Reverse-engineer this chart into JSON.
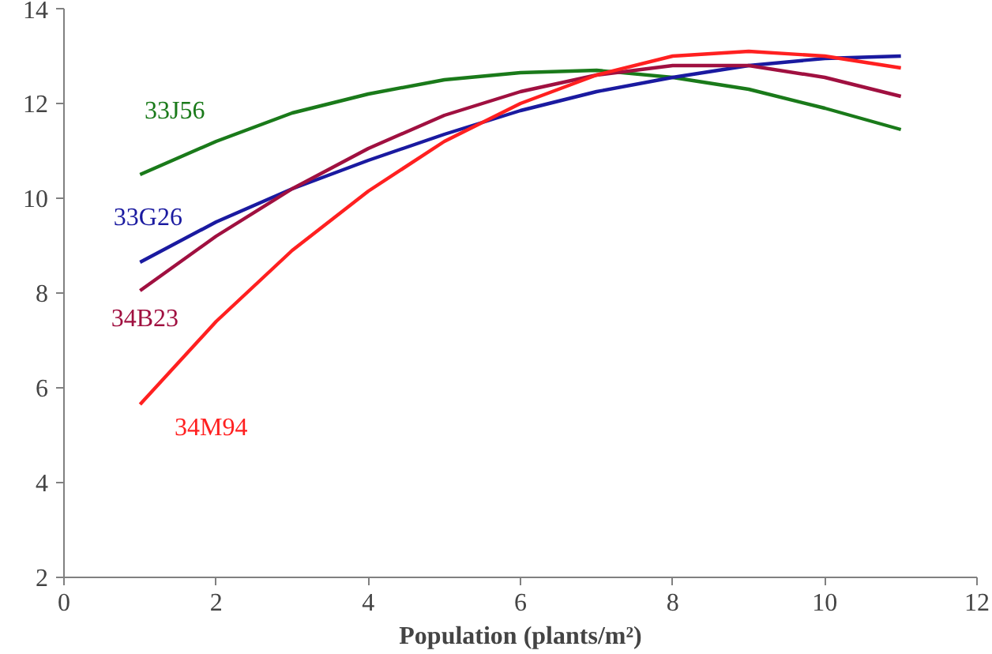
{
  "chart_data": {
    "type": "line",
    "xlabel": "Population (plants/m²)",
    "x": [
      1,
      2,
      3,
      4,
      5,
      6,
      7,
      8,
      9,
      10,
      11
    ],
    "xlim": [
      0,
      12
    ],
    "xticks": [
      0,
      2,
      4,
      6,
      8,
      10,
      12
    ],
    "ylim": [
      2,
      14
    ],
    "yticks": [
      2,
      4,
      6,
      8,
      10,
      12,
      14
    ],
    "grid": false,
    "marker": "none",
    "line_style": "solid",
    "series": [
      {
        "name": "33J56",
        "color": "#1a7a1a",
        "values": [
          10.5,
          11.2,
          11.8,
          12.2,
          12.5,
          12.65,
          12.7,
          12.55,
          12.3,
          11.9,
          11.45
        ]
      },
      {
        "name": "33G26",
        "color": "#1a1aa0",
        "values": [
          8.65,
          9.5,
          10.2,
          10.8,
          11.35,
          11.85,
          12.25,
          12.55,
          12.8,
          12.95,
          13.0
        ]
      },
      {
        "name": "34B23",
        "color": "#a01040",
        "values": [
          8.05,
          9.2,
          10.2,
          11.05,
          11.75,
          12.25,
          12.6,
          12.8,
          12.8,
          12.55,
          12.15
        ]
      },
      {
        "name": "34M94",
        "color": "#ff2020",
        "values": [
          5.65,
          7.4,
          8.9,
          10.15,
          11.2,
          12.0,
          12.6,
          13.0,
          13.1,
          13.0,
          12.75
        ]
      }
    ]
  }
}
